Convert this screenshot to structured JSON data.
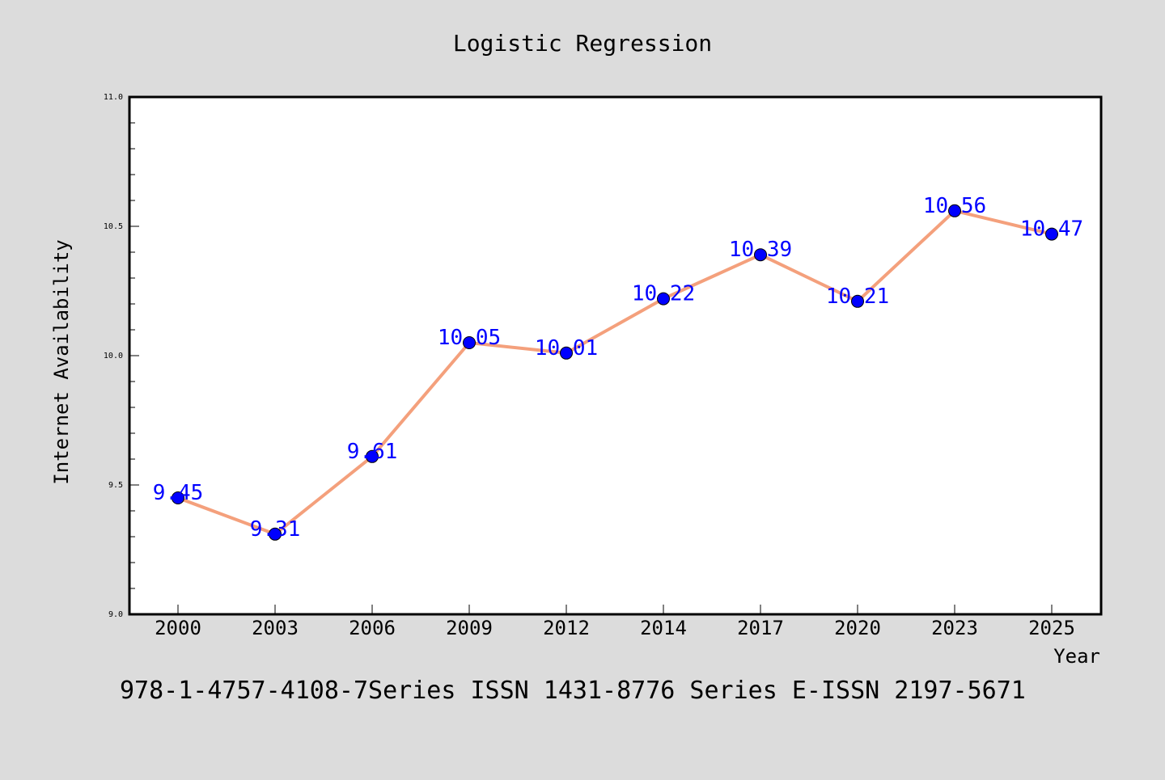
{
  "chart_data": {
    "type": "line",
    "title": "Logistic Regression",
    "xlabel": "Year",
    "ylabel": "Internet Availability",
    "categories": [
      "2000",
      "2003",
      "2006",
      "2009",
      "2012",
      "2014",
      "2017",
      "2020",
      "2023",
      "2025"
    ],
    "values": [
      9.45,
      9.31,
      9.61,
      10.05,
      10.01,
      10.22,
      10.39,
      10.21,
      10.56,
      10.47
    ],
    "data_labels": [
      "9.45",
      "9.31",
      "9.61",
      "10.05",
      "10.01",
      "10.22",
      "10.39",
      "10.21",
      "10.56",
      "10.47"
    ],
    "ylim": [
      9.0,
      11.0
    ],
    "y_ticks": [
      "9.0",
      "9.5",
      "10.0",
      "10.5",
      "11.0"
    ],
    "grid": false,
    "legend": "none",
    "colors": {
      "line": "#f4a07c",
      "marker": "#0000ff",
      "data_label": "#0000ff",
      "background": "#dcdcdc",
      "plot_area": "#ffffff"
    }
  },
  "footer": {
    "text": "978-1-4757-4108-7Series ISSN 1431-8776 Series E-ISSN 2197-5671"
  }
}
